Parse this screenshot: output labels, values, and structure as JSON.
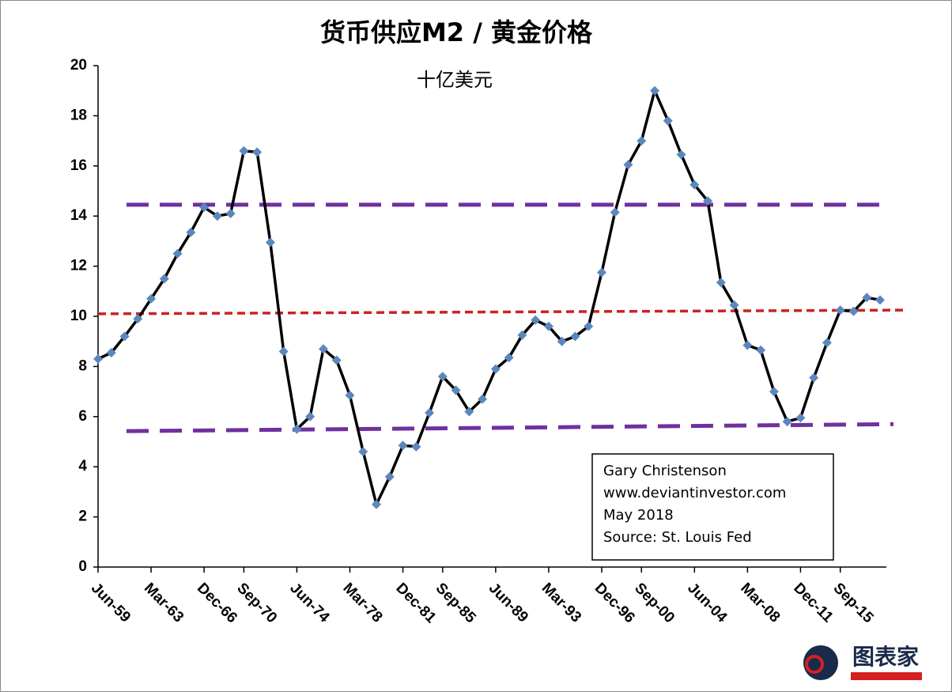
{
  "chart_data": {
    "type": "line",
    "title": "货币供应M2 / 黄金价格",
    "subtitle": "十亿美元",
    "categories": [
      "Jun-59",
      null,
      null,
      null,
      "Mar-63",
      null,
      null,
      null,
      "Dec-66",
      null,
      null,
      "Sep-70",
      null,
      null,
      null,
      "Jun-74",
      null,
      null,
      null,
      "Mar-78",
      null,
      null,
      null,
      "Dec-81",
      null,
      null,
      "Sep-85",
      null,
      null,
      null,
      "Jun-89",
      null,
      null,
      null,
      "Mar-93",
      null,
      null,
      null,
      "Dec-96",
      null,
      null,
      "Sep-00",
      null,
      null,
      null,
      "Jun-04",
      null,
      null,
      null,
      "Mar-08",
      null,
      null,
      null,
      "Dec-11",
      null,
      null,
      "Sep-15",
      null,
      null,
      null
    ],
    "series": [
      {
        "color": "#000000",
        "marker_color": "#5b87be",
        "values": [
          8.3,
          8.55,
          9.2,
          9.9,
          10.7,
          11.5,
          12.5,
          13.35,
          14.35,
          14.0,
          14.1,
          16.6,
          16.55,
          12.95,
          8.6,
          5.5,
          6.0,
          8.7,
          8.25,
          6.85,
          4.6,
          2.5,
          3.6,
          4.85,
          4.8,
          6.15,
          7.6,
          7.05,
          6.2,
          6.7,
          7.9,
          8.35,
          9.25,
          9.85,
          9.6,
          9.0,
          9.2,
          9.6,
          11.75,
          14.15,
          16.05,
          17.0,
          19.0,
          17.8,
          16.45,
          15.25,
          14.6,
          11.35,
          10.45,
          8.85,
          8.65,
          7.0,
          5.8,
          5.95,
          7.55,
          8.95,
          10.25,
          10.2,
          10.75,
          10.65
        ]
      }
    ],
    "reference_lines": [
      {
        "color": "#7030a0",
        "dash": "long",
        "values": [
          14.45,
          14.45
        ]
      },
      {
        "color": "#cc2222",
        "dash": "short",
        "values": [
          10.1,
          10.25
        ]
      },
      {
        "color": "#7030a0",
        "dash": "long",
        "values": [
          5.42,
          5.7
        ]
      }
    ],
    "ylim": [
      0,
      20
    ],
    "yticks": [
      0,
      2,
      4,
      6,
      8,
      10,
      12,
      14,
      16,
      18,
      20
    ],
    "grid": false,
    "annotation": [
      "Gary Christenson",
      "www.deviantinvestor.com",
      "May 2018",
      "Source: St. Louis Fed"
    ],
    "watermark": "图表家"
  }
}
